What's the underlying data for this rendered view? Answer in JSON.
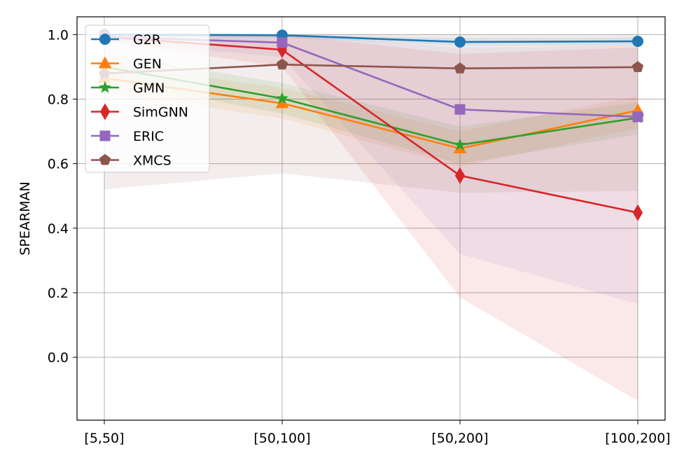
{
  "chart_data": {
    "type": "line",
    "title": "",
    "xlabel": "",
    "ylabel": "SPEARMAN",
    "categories": [
      "[5,50]",
      "[50,100]",
      "[50,200]",
      "[100,200]"
    ],
    "ylim": [
      -0.195,
      1.055
    ],
    "yticks": [
      0.0,
      0.2,
      0.4,
      0.6,
      0.8,
      1.0
    ],
    "ytick_labels": [
      "0.0",
      "0.2",
      "0.4",
      "0.6",
      "0.8",
      "1.0"
    ],
    "grid": true,
    "legend_position": "top-left",
    "series": [
      {
        "name": "G2R",
        "color": "#1f77b4",
        "marker": "circle",
        "values": [
          1.0,
          0.998,
          0.977,
          0.979
        ],
        "band_lower": [
          0.995,
          0.99,
          0.965,
          0.965
        ],
        "band_upper": [
          1.0,
          1.0,
          0.99,
          0.992
        ]
      },
      {
        "name": "GEN",
        "color": "#ff7f0e",
        "marker": "triangle",
        "values": [
          0.865,
          0.787,
          0.647,
          0.765
        ],
        "band_lower": [
          0.82,
          0.74,
          0.59,
          0.71
        ],
        "band_upper": [
          0.91,
          0.835,
          0.7,
          0.81
        ]
      },
      {
        "name": "GMN",
        "color": "#2ca02c",
        "marker": "star",
        "values": [
          0.9,
          0.802,
          0.658,
          0.742
        ],
        "band_lower": [
          0.86,
          0.755,
          0.6,
          0.69
        ],
        "band_upper": [
          0.94,
          0.85,
          0.715,
          0.79
        ]
      },
      {
        "name": "SimGNN",
        "color": "#d62728",
        "marker": "thin_diamond",
        "values": [
          0.993,
          0.953,
          0.563,
          0.448
        ],
        "band_lower": [
          0.98,
          0.9,
          0.185,
          -0.135
        ],
        "band_upper": [
          1.0,
          1.0,
          0.94,
          0.96
        ]
      },
      {
        "name": "ERIC",
        "color": "#9467bd",
        "marker": "square",
        "values": [
          0.993,
          0.975,
          0.768,
          0.745
        ],
        "band_lower": [
          0.98,
          0.93,
          0.32,
          0.165
        ],
        "band_upper": [
          1.0,
          1.0,
          0.96,
          0.965
        ]
      },
      {
        "name": "XMCS",
        "color": "#8c564b",
        "marker": "pentagon",
        "values": [
          0.879,
          0.907,
          0.895,
          0.899
        ],
        "band_lower": [
          0.52,
          0.57,
          0.51,
          0.515
        ],
        "band_upper": [
          1.0,
          1.0,
          1.0,
          1.0
        ]
      }
    ]
  }
}
